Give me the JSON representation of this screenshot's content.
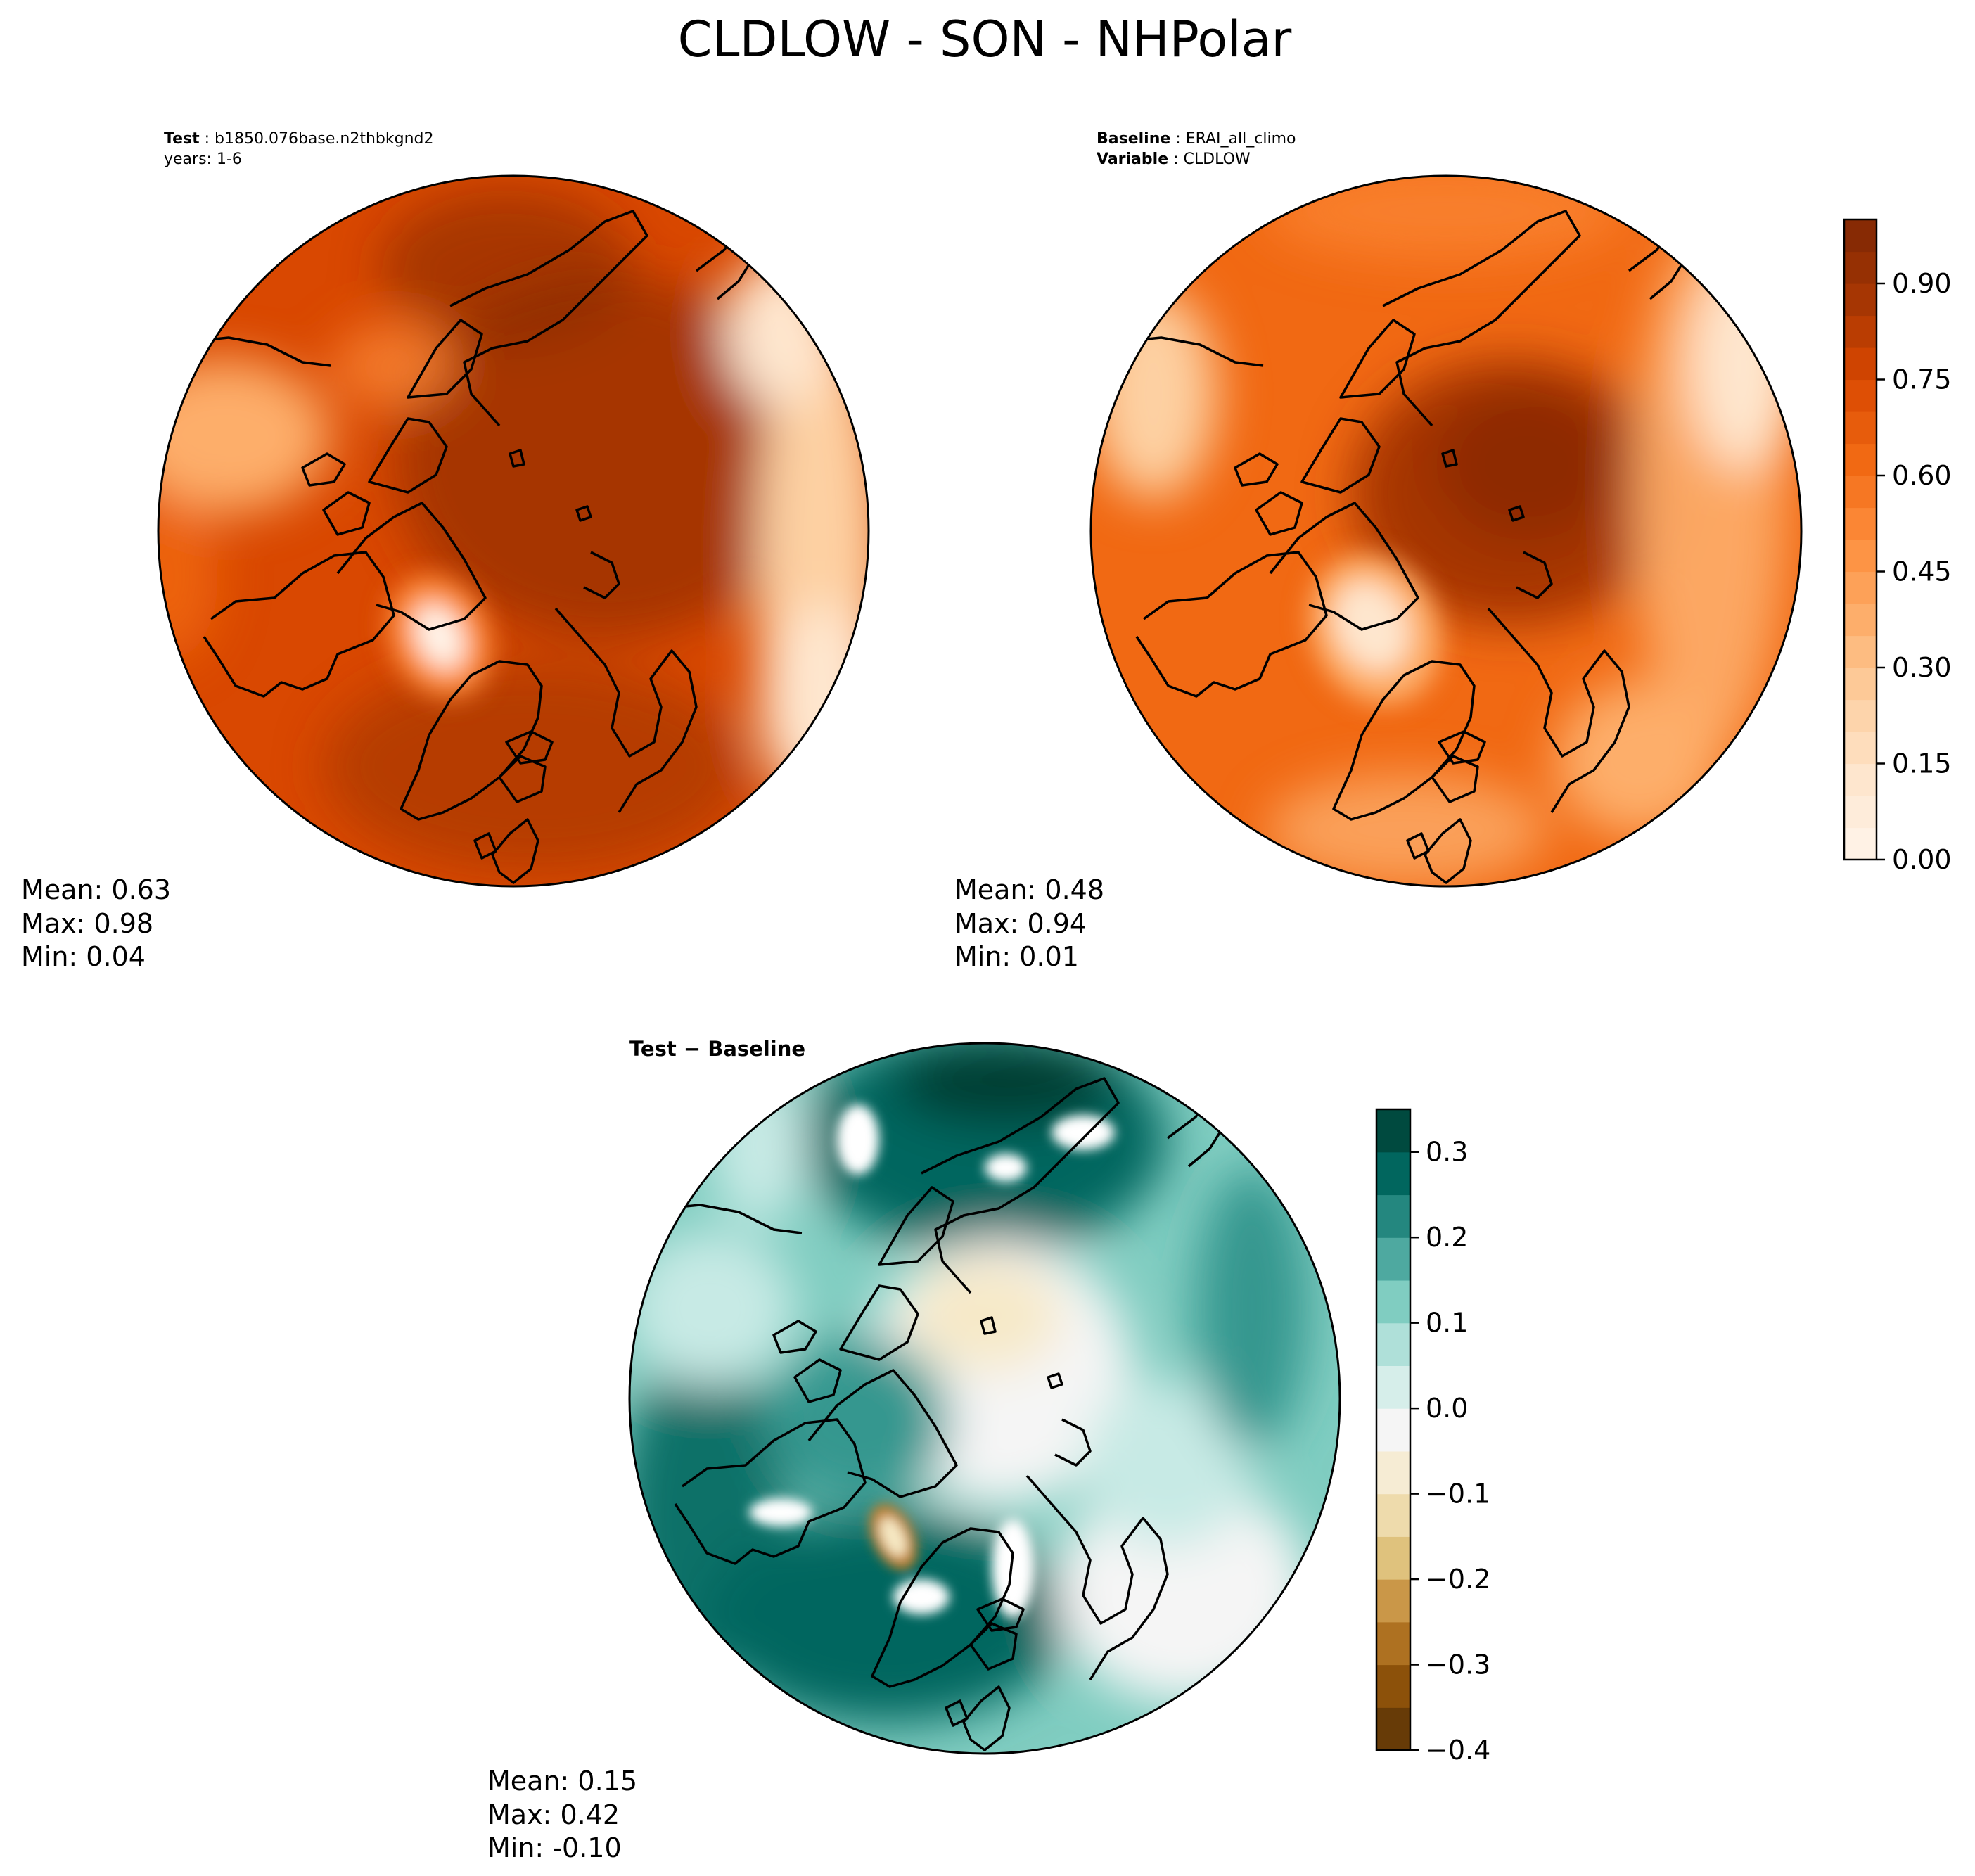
{
  "figure": {
    "title": "CLDLOW - SON - NHPolar"
  },
  "panels": {
    "test": {
      "label": "Test",
      "case": "b1850.076base.n2thbkgnd2",
      "years": "years: 1-6",
      "mean": "Mean:  0.63",
      "max": "Max:  0.98",
      "min": "Min:  0.04"
    },
    "baseline": {
      "label": "Baseline",
      "case": "ERAI_all_climo",
      "variable_label": "Variable",
      "variable": "CLDLOW",
      "mean": "Mean:  0.48",
      "max": "Max:  0.94",
      "min": "Min:  0.01"
    },
    "diff": {
      "title": "Test − Baseline",
      "mean": "Mean:  0.15",
      "max": "Max:  0.42",
      "min": "Min: -0.10"
    }
  },
  "chart_data": [
    {
      "type": "heatmap",
      "projection": "north-polar-stereographic",
      "panel": "test",
      "colormap": "Oranges",
      "mean": 0.63,
      "max": 0.98,
      "min": 0.04,
      "color_range": [
        0,
        1.0
      ]
    },
    {
      "type": "heatmap",
      "projection": "north-polar-stereographic",
      "panel": "baseline",
      "colormap": "Oranges",
      "mean": 0.48,
      "max": 0.94,
      "min": 0.01,
      "color_range": [
        0,
        1.0
      ],
      "colorbar": {
        "ticks": [
          0.0,
          0.15,
          0.3,
          0.45,
          0.6,
          0.75,
          0.9
        ],
        "tick_labels": [
          "0.00",
          "0.15",
          "0.30",
          "0.45",
          "0.60",
          "0.75",
          "0.90"
        ],
        "levels": 20
      }
    },
    {
      "type": "heatmap",
      "projection": "north-polar-stereographic",
      "panel": "diff",
      "colormap": "BrBG",
      "mean": 0.15,
      "max": 0.42,
      "min": -0.1,
      "color_range": [
        -0.4,
        0.35
      ],
      "colorbar": {
        "ticks": [
          -0.4,
          -0.3,
          -0.2,
          -0.1,
          0.0,
          0.1,
          0.2,
          0.3
        ],
        "tick_labels": [
          "−0.4",
          "−0.3",
          "−0.2",
          "−0.1",
          "0.0",
          "0.1",
          "0.2",
          "0.3"
        ],
        "levels": 15
      }
    }
  ],
  "colors": {
    "oranges": [
      "#fff5eb",
      "#fee6ce",
      "#fdd0a2",
      "#fdae6b",
      "#fd8d3c",
      "#f16913",
      "#d94801",
      "#a63603",
      "#7f2704"
    ],
    "brbg": [
      "#543005",
      "#8c510a",
      "#bf812d",
      "#dfc27d",
      "#f6e8c3",
      "#f5f5f5",
      "#c7eae5",
      "#80cdc1",
      "#35978f",
      "#01665e",
      "#003c30"
    ]
  }
}
